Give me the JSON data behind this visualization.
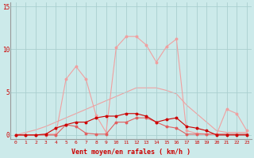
{
  "x": [
    0,
    1,
    2,
    3,
    4,
    5,
    6,
    7,
    8,
    9,
    10,
    11,
    12,
    13,
    14,
    15,
    16,
    17,
    18,
    19,
    20,
    21,
    22,
    23
  ],
  "rafales": [
    0,
    0,
    0,
    0.1,
    0.1,
    6.5,
    8.0,
    6.5,
    2.3,
    0.3,
    10.2,
    11.5,
    11.5,
    10.5,
    8.5,
    10.3,
    11.2,
    0.5,
    0.2,
    0.1,
    0.1,
    3.0,
    2.5,
    0.5
  ],
  "trend": [
    0,
    0.3,
    0.6,
    1.0,
    1.5,
    2.0,
    2.5,
    3.0,
    3.5,
    4.0,
    4.5,
    5.0,
    5.5,
    5.5,
    5.5,
    5.2,
    4.8,
    3.5,
    2.5,
    1.5,
    0.5,
    0.3,
    0.3,
    0.3
  ],
  "moyen": [
    0,
    0,
    0,
    0.1,
    0.8,
    1.2,
    1.5,
    1.5,
    2.0,
    2.2,
    2.2,
    2.5,
    2.5,
    2.2,
    1.5,
    1.8,
    2.0,
    1.0,
    0.8,
    0.5,
    0.0,
    0.0,
    0.0,
    0.0
  ],
  "near_zero": [
    0,
    0,
    0,
    0,
    0,
    1.2,
    1.0,
    0.2,
    0.1,
    0.1,
    1.5,
    1.5,
    2.0,
    2.0,
    1.5,
    1.0,
    0.8,
    0.1,
    0.1,
    0.1,
    0.1,
    0.1,
    0.1,
    0.1
  ],
  "bg_color": "#cceaea",
  "grid_color": "#aacfcf",
  "dark_red": "#cc0000",
  "med_red": "#e06060",
  "light_pink": "#f0a0a0",
  "xlabel": "Vent moyen/en rafales ( km/h )",
  "ytick_labels": [
    "0",
    "",
    "5",
    "",
    "10",
    "",
    "15"
  ],
  "yticks": [
    0,
    2.5,
    5,
    7.5,
    10,
    12.5,
    15
  ],
  "xticks": [
    0,
    1,
    2,
    3,
    4,
    5,
    6,
    7,
    8,
    9,
    10,
    11,
    12,
    13,
    14,
    15,
    16,
    17,
    18,
    19,
    20,
    21,
    22,
    23
  ],
  "ylim": [
    -0.5,
    15.5
  ],
  "xlim": [
    -0.5,
    23.5
  ]
}
